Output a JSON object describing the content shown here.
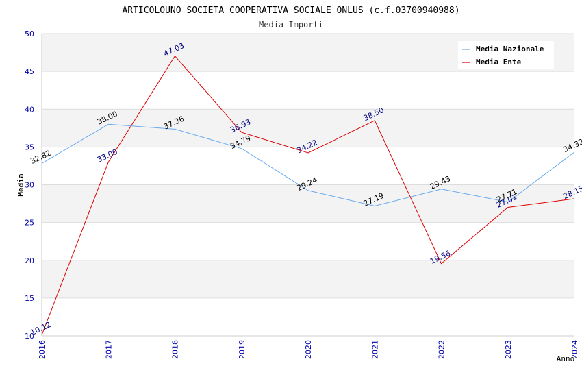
{
  "chart_data": {
    "type": "line",
    "title": "ARTICOLOUNO SOCIETA COOPERATIVA SOCIALE ONLUS (c.f.03700940988)",
    "subtitle": "Media Importi",
    "xlabel": "Anno",
    "ylabel": "Media",
    "ylim": [
      10,
      50
    ],
    "yticks": [
      "10",
      "15",
      "20",
      "25",
      "30",
      "35",
      "40",
      "45",
      "50"
    ],
    "categories": [
      "2016",
      "2017",
      "2018",
      "2019",
      "2020",
      "2021",
      "2022",
      "2023",
      "2024"
    ],
    "legend_position": "top-right",
    "series": [
      {
        "name": "Media Nazionale",
        "color": "#66aaee",
        "label_color": "#000000",
        "values": [
          32.82,
          38.0,
          37.36,
          34.79,
          29.24,
          27.19,
          29.43,
          27.71,
          34.32
        ],
        "labels": [
          "32.82",
          "38.00",
          "37.36",
          "34.79",
          "29.24",
          "27.19",
          "29.43",
          "27.71",
          "34.32"
        ]
      },
      {
        "name": "Media Ente",
        "color": "#dd0000",
        "label_color": "#000080",
        "values": [
          10.12,
          33.0,
          47.03,
          36.93,
          34.22,
          38.5,
          19.56,
          27.01,
          28.15
        ],
        "labels": [
          "10.12",
          "33.00",
          "47.03",
          "36.93",
          "34.22",
          "38.50",
          "19.56",
          "27.01",
          "28.15"
        ]
      }
    ]
  }
}
